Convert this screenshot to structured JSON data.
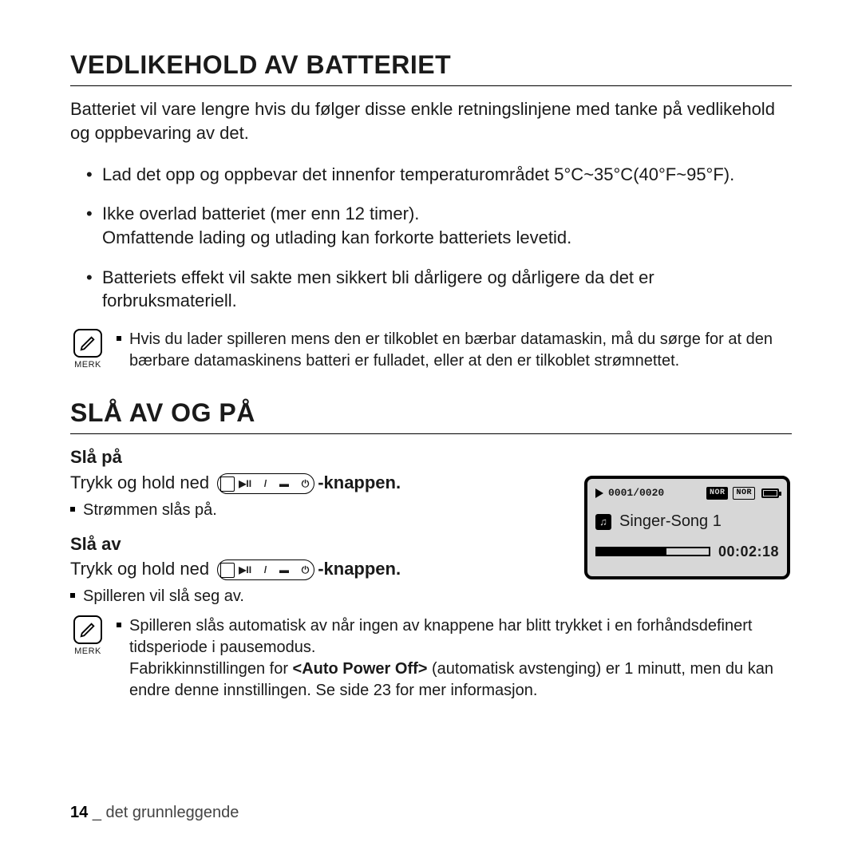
{
  "section1": {
    "title": "VEDLIKEHOLD AV BATTERIET",
    "intro": "Batteriet vil vare lengre hvis du følger disse enkle retningslinjene med tanke på vedlikehold og oppbevaring av det.",
    "bullets": [
      "Lad det opp og oppbevar det innenfor temperaturområdet 5°C~35°C(40°F~95°F).",
      "Ikke overlad batteriet (mer enn 12 timer).\nOmfattende lading og utlading kan forkorte batteriets levetid.",
      "Batteriets effekt vil sakte men sikkert bli dårligere og dårligere da det er forbruksmateriell."
    ],
    "note_label": "MERK",
    "note_items": [
      "Hvis du lader spilleren mens den er tilkoblet en bærbar datamaskin, må du sørge for at den bærbare datamaskinens batteri er fulladet, eller at den er tilkoblet strømnettet."
    ]
  },
  "section2": {
    "title": "SLÅ AV OG PÅ",
    "on": {
      "heading": "Slå på",
      "press_prefix": "Trykk og hold ned",
      "press_suffix": "-knappen",
      "result": "Strømmen slås på."
    },
    "off": {
      "heading": "Slå av",
      "press_prefix": "Trykk og hold ned",
      "press_suffix": "-knappen",
      "result": "Spilleren vil slå seg av."
    },
    "note_label": "MERK",
    "note2_line1": "Spilleren slås automatisk av når ingen av knappene har blitt trykket i en forhåndsdefinert tidsperiode i pausemodus.",
    "note2_line2_a": "Fabrikkinnstillingen for ",
    "note2_line2_bold": "<Auto Power Off>",
    "note2_line2_b": " (automatisk avstenging) er 1 minutt, men du kan endre denne innstillingen. Se side 23 for mer informasjon."
  },
  "device": {
    "counter": "0001/0020",
    "badge1": "NOR",
    "badge2": "NOR",
    "song": "Singer-Song 1",
    "time": "00:02:18",
    "progress_pct": 62,
    "bg": "#d7d7d7"
  },
  "footer": {
    "page": "14",
    "label": "det grunnleggende"
  }
}
